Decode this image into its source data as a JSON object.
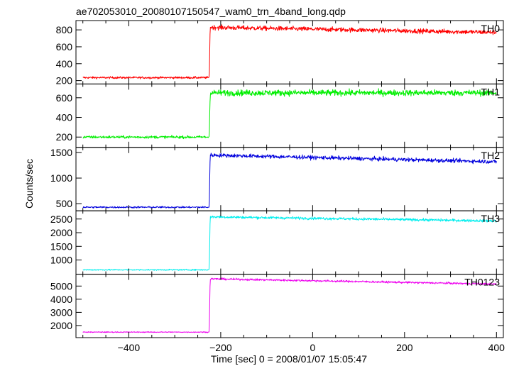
{
  "chart_data": {
    "type": "line",
    "title": "ae702053010_20080107150547_wam0_trn_4band_long.qdp",
    "xlabel": "Time [sec] 0 = 2008/01/07 15:05:47",
    "ylabel": "Counts/sec",
    "xlim": [
      -515,
      415
    ],
    "x_ticks": [
      -400,
      -200,
      0,
      200,
      400
    ],
    "x_tick_labels": [
      "−400",
      "−200",
      "0",
      "200",
      "400"
    ],
    "x_start": -500,
    "x_end": 400,
    "step_time": -225,
    "grid": false,
    "panels": [
      {
        "label": "TH0",
        "color": "#ff0000",
        "ylim": [
          160,
          910
        ],
        "y_ticks": [
          200,
          400,
          600,
          800
        ],
        "y_tick_labels": [
          "200",
          "400",
          "600",
          "800"
        ],
        "pre_level": 235,
        "post_start": 830,
        "post_end": 770,
        "noise": 25
      },
      {
        "label": "TH1",
        "color": "#00ee00",
        "ylim": [
          95,
          740
        ],
        "y_ticks": [
          200,
          400,
          600
        ],
        "y_tick_labels": [
          "200",
          "400",
          "600"
        ],
        "pre_level": 200,
        "post_start": 650,
        "post_end": 650,
        "noise": 28
      },
      {
        "label": "TH2",
        "color": "#0000dd",
        "ylim": [
          360,
          1600
        ],
        "y_ticks": [
          500,
          1000,
          1500
        ],
        "y_tick_labels": [
          "500",
          "1000",
          "1500"
        ],
        "pre_level": 430,
        "post_start": 1450,
        "post_end": 1320,
        "noise": 35
      },
      {
        "label": "TH3",
        "color": "#00eeee",
        "ylim": [
          480,
          2800
        ],
        "y_ticks": [
          1000,
          1500,
          2000,
          2500
        ],
        "y_tick_labels": [
          "1000",
          "1500",
          "2000",
          "2500"
        ],
        "pre_level": 640,
        "post_start": 2580,
        "post_end": 2430,
        "noise": 45
      },
      {
        "label": "TH0123",
        "color": "#ee00ee",
        "ylim": [
          1080,
          5900
        ],
        "y_ticks": [
          2000,
          3000,
          4000,
          5000
        ],
        "y_tick_labels": [
          "2000",
          "3000",
          "4000",
          "5000"
        ],
        "pre_level": 1500,
        "post_start": 5550,
        "post_end": 5150,
        "noise": 70
      }
    ]
  }
}
